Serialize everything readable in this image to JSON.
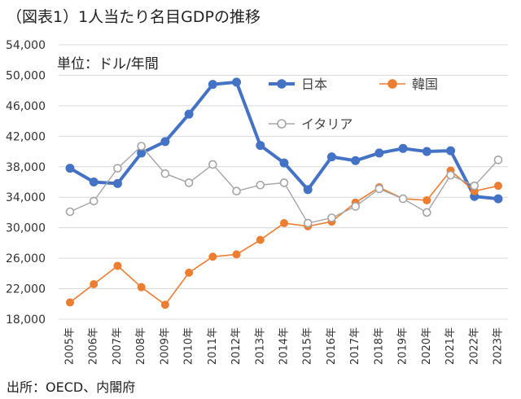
{
  "title": "（図表1）1人当たり名目GDPの推移",
  "unit_label": "単位：ドル/年間",
  "source": "出所：OECD、内閣府",
  "chart_data": {
    "type": "line",
    "categories": [
      "2005年",
      "2006年",
      "2007年",
      "2008年",
      "2009年",
      "2010年",
      "2011年",
      "2012年",
      "2013年",
      "2014年",
      "2015年",
      "2016年",
      "2017年",
      "2018年",
      "2019年",
      "2020年",
      "2021年",
      "2022年",
      "2023年"
    ],
    "ylim": [
      18000,
      54000
    ],
    "yticks": [
      18000,
      22000,
      26000,
      30000,
      34000,
      38000,
      42000,
      46000,
      50000,
      54000
    ],
    "ytick_labels": [
      "18,000",
      "22,000",
      "26,000",
      "30,000",
      "34,000",
      "38,000",
      "42,000",
      "46,000",
      "50,000",
      "54,000"
    ],
    "grid": true,
    "legend_placement": "top-right",
    "series": [
      {
        "name": "日本",
        "color": "#4472C4",
        "marker": "filled",
        "values": [
          37800,
          36000,
          35800,
          39800,
          41300,
          44900,
          48800,
          49100,
          40800,
          38500,
          35000,
          39300,
          38800,
          39800,
          40400,
          40000,
          40100,
          34100,
          33800
        ]
      },
      {
        "name": "韓国",
        "color": "#ED7D31",
        "marker": "filled",
        "values": [
          20200,
          22600,
          25000,
          22200,
          19900,
          24100,
          26200,
          26500,
          28400,
          30600,
          30200,
          30800,
          33300,
          35300,
          33800,
          33600,
          37500,
          34800,
          35500
        ]
      },
      {
        "name": "イタリア",
        "color": "#A5A5A5",
        "marker": "open",
        "values": [
          32100,
          33500,
          37800,
          40700,
          37100,
          35900,
          38300,
          34800,
          35600,
          35900,
          30600,
          31300,
          32800,
          35100,
          33800,
          32000,
          36900,
          35500,
          38900
        ]
      }
    ]
  }
}
